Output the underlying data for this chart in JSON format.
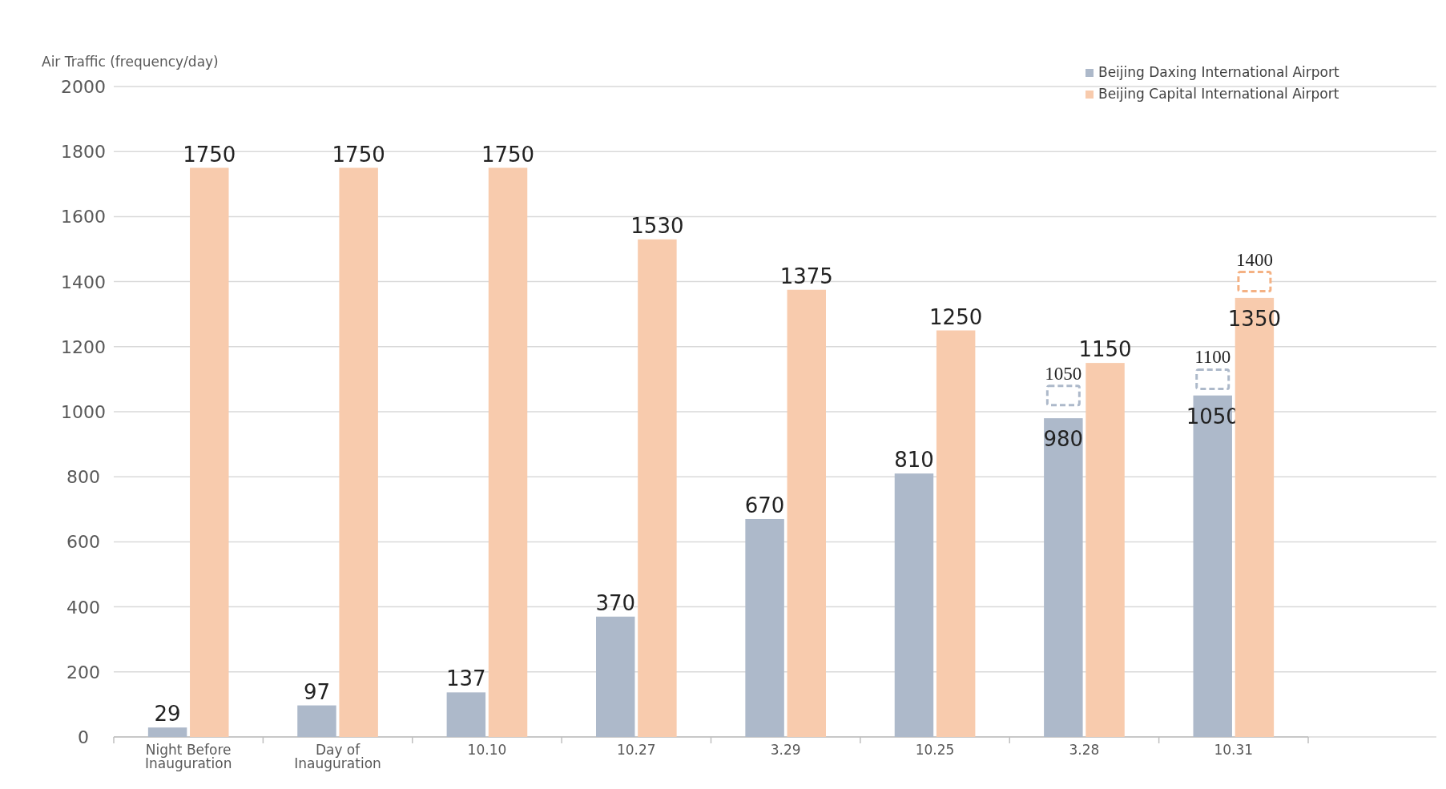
{
  "chart_data": {
    "type": "bar",
    "ylabel": "Air Traffic (frequency/day)",
    "categories": [
      "Night Before Inauguration",
      "Day of Inauguration",
      "10.10",
      "10.27",
      "3.29",
      "10.25",
      "3.28",
      "10.31"
    ],
    "series": [
      {
        "name": "Beijing Daxing International Airport",
        "color": "#adb9ca",
        "values": [
          29,
          97,
          137,
          370,
          670,
          810,
          980,
          1050
        ]
      },
      {
        "name": "Beijing Capital International Airport",
        "color": "#f8cbad",
        "values": [
          1750,
          1750,
          1750,
          1530,
          1375,
          1250,
          1150,
          1350
        ]
      },
      {
        "type": "scatter",
        "color": "#adb9ca",
        "values": [
          null,
          null,
          null,
          null,
          null,
          null,
          1050,
          1100
        ]
      },
      {
        "type": "scatter",
        "color": "#f4b183",
        "values": [
          null,
          null,
          null,
          null,
          null,
          null,
          null,
          1400
        ]
      }
    ],
    "ylim": [
      0,
      2000
    ],
    "yticks": [
      0,
      200,
      400,
      600,
      800,
      1000,
      1200,
      1400,
      1600,
      1800,
      2000
    ],
    "grid": "y",
    "legend": "top right",
    "data_labels": true,
    "marker": "square"
  }
}
